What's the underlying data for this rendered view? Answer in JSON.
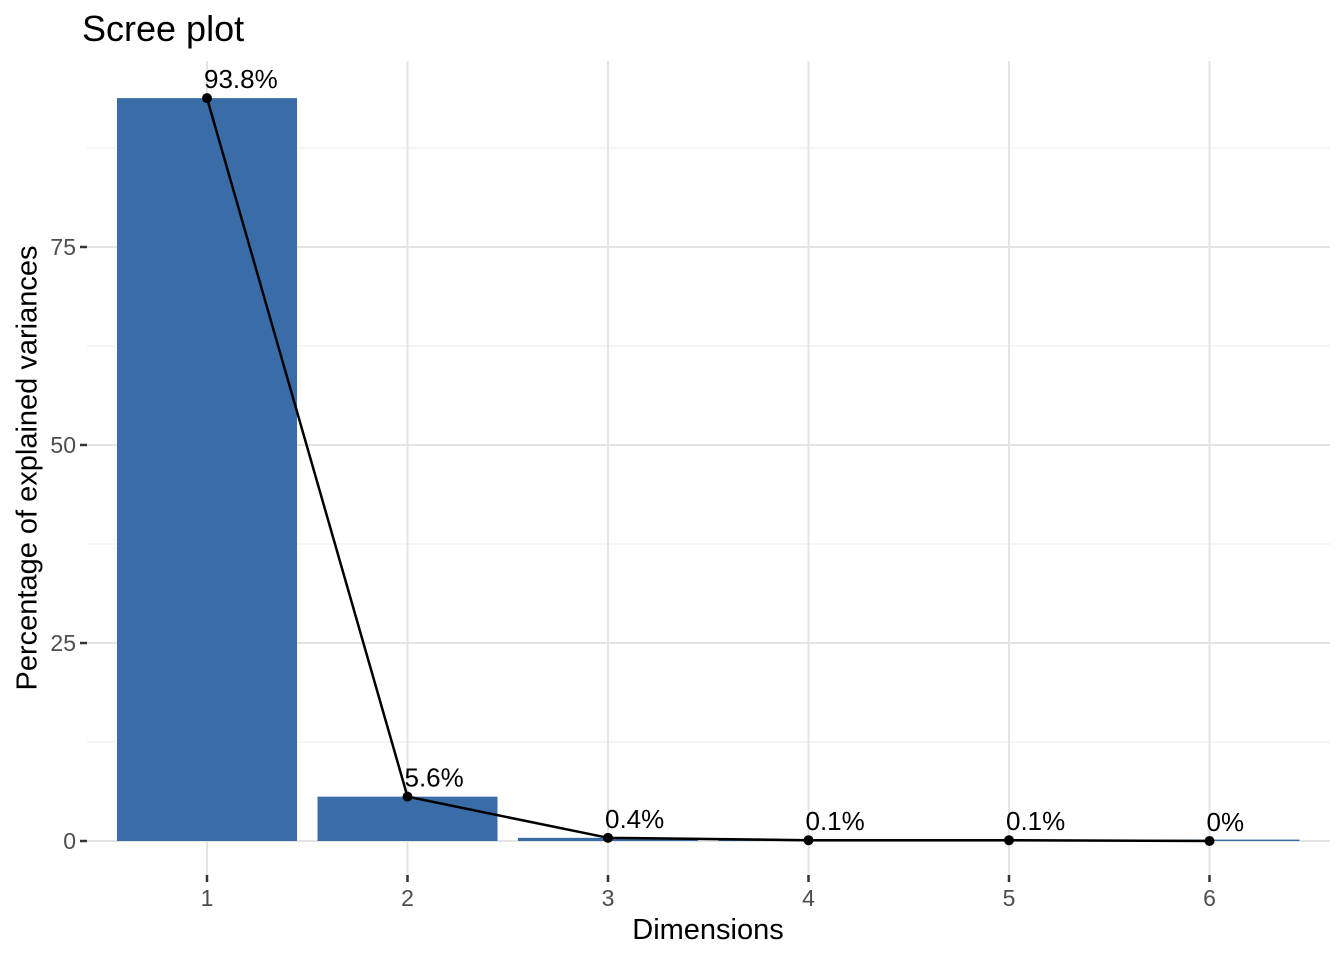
{
  "chart_data": {
    "type": "bar",
    "subtype": "scree-plot-bar-with-line",
    "title": "Scree plot",
    "xlabel": "Dimensions",
    "ylabel": "Percentage of explained variances",
    "categories": [
      "1",
      "2",
      "3",
      "4",
      "5",
      "6"
    ],
    "values": [
      93.8,
      5.6,
      0.4,
      0.1,
      0.1,
      0
    ],
    "point_labels": [
      "93.8%",
      "5.6%",
      "0.4%",
      "0.1%",
      "0.1%",
      "0%"
    ],
    "series": [
      {
        "name": "explained-variance-bars",
        "values": [
          93.8,
          5.6,
          0.4,
          0.1,
          0.1,
          0
        ]
      },
      {
        "name": "explained-variance-line",
        "values": [
          93.8,
          5.6,
          0.4,
          0.1,
          0.1,
          0
        ]
      }
    ],
    "y_ticks": [
      0,
      25,
      50,
      75
    ],
    "y_minor_gridlines": [
      12.5,
      37.5,
      62.5,
      87.5
    ],
    "ylim": [
      -4.7,
      98.5
    ],
    "legend": "none",
    "grid": "horizontal major+minor, vertical major at each dimension",
    "colors": {
      "bar_fill": "#3A6CA8",
      "line": "#000000",
      "point": "#000000",
      "label_text": "#000000",
      "grid_major": "#E4E4E4",
      "grid_minor": "#F2F2F2",
      "axis_tick": "#333333",
      "tick_label": "#4D4D4D",
      "title_text": "#000000",
      "background": "#FFFFFF"
    }
  }
}
